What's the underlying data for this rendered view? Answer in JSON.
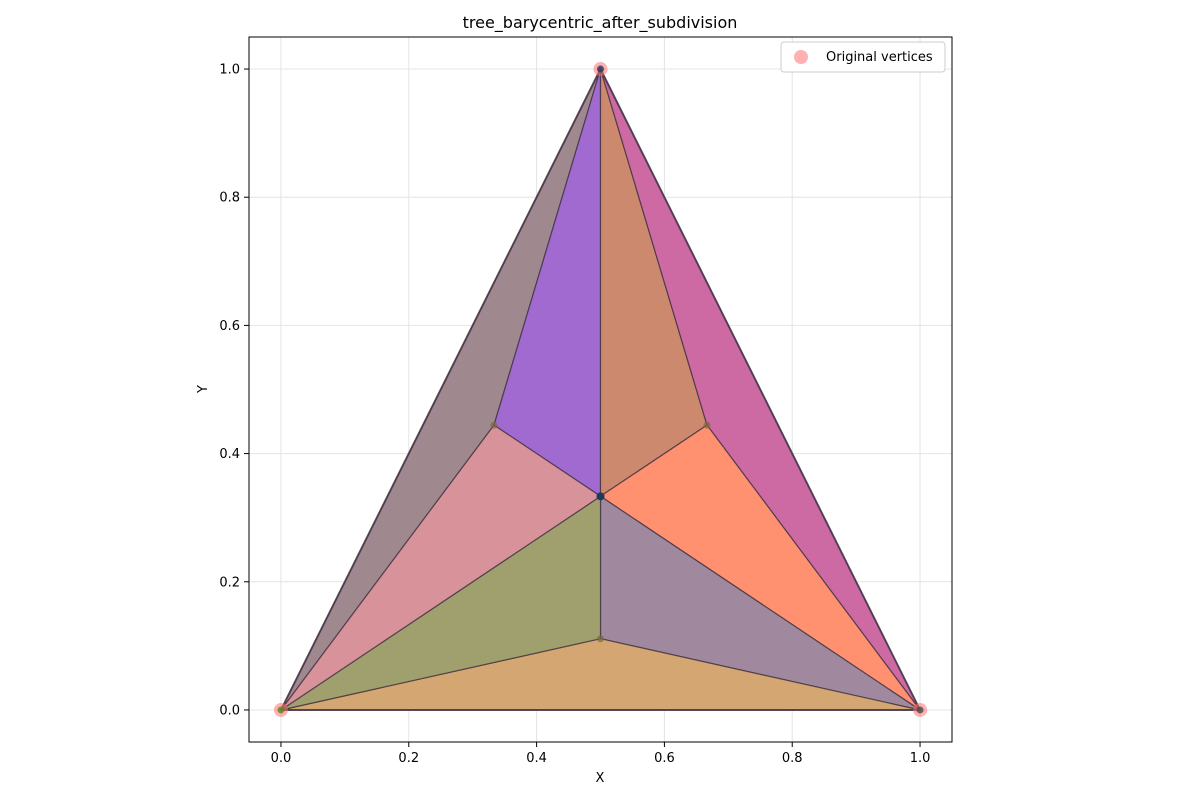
{
  "chart_data": {
    "type": "triangulation",
    "title": "tree_barycentric_after_subdivision",
    "xlabel": "X",
    "ylabel": "Y",
    "xlim": [
      -0.05,
      1.05
    ],
    "ylim": [
      -0.05,
      1.05
    ],
    "xticks": [
      0.0,
      0.2,
      0.4,
      0.6,
      0.8,
      1.0
    ],
    "yticks": [
      0.0,
      0.2,
      0.4,
      0.6,
      0.8,
      1.0
    ],
    "grid": true,
    "legend_position": "top-right",
    "legend": [
      {
        "label": "Original vertices",
        "color": "#ff6f6f"
      }
    ],
    "original_vertices": [
      [
        0.0,
        0.0
      ],
      [
        1.0,
        0.0
      ],
      [
        0.5,
        1.0
      ]
    ],
    "triangles": [
      {
        "points": [
          [
            0.0,
            0.0
          ],
          [
            0.5,
            1.0
          ],
          [
            0.3333,
            0.4444
          ]
        ],
        "color": "#a0888f"
      },
      {
        "points": [
          [
            0.3333,
            0.4444
          ],
          [
            0.5,
            1.0
          ],
          [
            0.5,
            0.3333
          ]
        ],
        "color": "#a06ad1"
      },
      {
        "points": [
          [
            0.5,
            1.0
          ],
          [
            0.5,
            0.3333
          ],
          [
            0.6667,
            0.4444
          ]
        ],
        "color": "#cd896e"
      },
      {
        "points": [
          [
            0.5,
            1.0
          ],
          [
            1.0,
            0.0
          ],
          [
            0.6667,
            0.4444
          ]
        ],
        "color": "#cd6aa4"
      },
      {
        "points": [
          [
            0.6667,
            0.4444
          ],
          [
            1.0,
            0.0
          ],
          [
            0.5,
            0.3333
          ]
        ],
        "color": "#ff9070"
      },
      {
        "points": [
          [
            0.5,
            0.3333
          ],
          [
            1.0,
            0.0
          ],
          [
            0.5,
            0.1111
          ]
        ],
        "color": "#a0889f"
      },
      {
        "points": [
          [
            0.0,
            0.0
          ],
          [
            1.0,
            0.0
          ],
          [
            0.5,
            0.1111
          ]
        ],
        "color": "#d4a772"
      },
      {
        "points": [
          [
            0.0,
            0.0
          ],
          [
            0.5,
            0.1111
          ],
          [
            0.5,
            0.3333
          ]
        ],
        "color": "#a0a06e"
      },
      {
        "points": [
          [
            0.0,
            0.0
          ],
          [
            0.5,
            0.3333
          ],
          [
            0.3333,
            0.4444
          ]
        ],
        "color": "#d8929a"
      }
    ],
    "subdivision_points": [
      [
        0.3333,
        0.4444
      ],
      [
        0.6667,
        0.4444
      ],
      [
        0.5,
        0.1111
      ]
    ],
    "centroid": [
      0.5,
      0.3333
    ]
  }
}
